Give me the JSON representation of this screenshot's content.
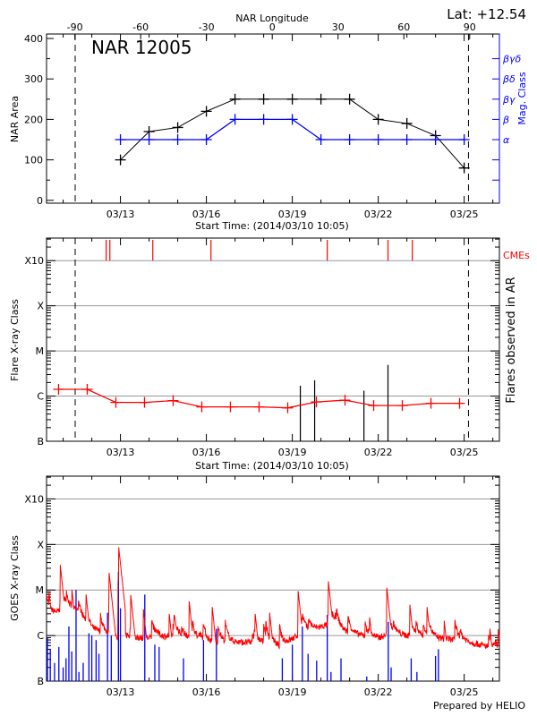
{
  "footer": "Prepared by HELIO",
  "colors": {
    "black": "#000000",
    "blue": "#0000ff",
    "red": "#ff0000",
    "grid": "#999999"
  },
  "chart_data": [
    {
      "id": "nar",
      "type": "line",
      "title": "NAR 12005",
      "lat_label": "Lat: +12.54",
      "top_xlabel": "NAR Longitude",
      "xlabel": "Start Time: (2014/03/10 10:05)",
      "ylabel": "NAR Area",
      "y2label": "Mag. Class",
      "xlim_days": [
        10.42,
        26.23
      ],
      "x_ticks": [
        {
          "day": 13,
          "label": "03/13"
        },
        {
          "day": 16,
          "label": "03/16"
        },
        {
          "day": 19,
          "label": "03/19"
        },
        {
          "day": 22,
          "label": "03/22"
        },
        {
          "day": 25,
          "label": "03/25"
        }
      ],
      "lon_ticks": [
        -90,
        -60,
        -30,
        0,
        30,
        60,
        90
      ],
      "lon_zero_day": 18.3,
      "deg_per_day": 13.06,
      "limb_days": [
        11.42,
        25.15
      ],
      "ylim": [
        -7,
        411
      ],
      "yticks": [
        0,
        100,
        200,
        300,
        400
      ],
      "mag_class_levels": [
        {
          "label": "α",
          "y": 150
        },
        {
          "label": "β",
          "y": 200
        },
        {
          "label": "βγ",
          "y": 250
        },
        {
          "label": "βδ",
          "y": 300
        },
        {
          "label": "βγδ",
          "y": 350
        }
      ],
      "mag_extra_ticks": [
        50,
        100
      ],
      "days": [
        13,
        14,
        15,
        16,
        17,
        18,
        19,
        20,
        21,
        22,
        23,
        24,
        25
      ],
      "series": [
        {
          "name": "NAR Area",
          "color": "#000000",
          "values": [
            100,
            170,
            180,
            220,
            250,
            250,
            250,
            250,
            250,
            200,
            190,
            160,
            80
          ]
        },
        {
          "name": "Mag. Class",
          "color": "#0000ff",
          "values": [
            "α",
            "α",
            "α",
            "α",
            "β",
            "β",
            "β",
            "α",
            "α",
            "α",
            "α",
            "α",
            "α"
          ]
        }
      ]
    },
    {
      "id": "flares",
      "type": "line",
      "xlabel": "Start Time: (2014/03/10 10:05)",
      "ylabel": "Flare X-ray Class",
      "y2label": "Flares observed in AR",
      "cme_label": "CMEs",
      "scale": "log10 flux (W/m^2)",
      "ylim": [
        -7,
        -2.5
      ],
      "levels": [
        {
          "label": "B",
          "log": -7
        },
        {
          "label": "C",
          "log": -6
        },
        {
          "label": "M",
          "log": -5
        },
        {
          "label": "X",
          "log": -4
        },
        {
          "label": "X10",
          "log": -3
        }
      ],
      "daily_max_days": [
        10.84,
        11.84,
        12.84,
        13.84,
        14.84,
        15.84,
        16.84,
        17.84,
        18.84,
        19.84,
        20.84,
        21.84,
        22.84,
        23.84,
        24.84
      ],
      "daily_max_log": [
        -5.85,
        -5.85,
        -6.14,
        -6.14,
        -6.1,
        -6.24,
        -6.24,
        -6.24,
        -6.26,
        -6.13,
        -6.09,
        -6.21,
        -6.21,
        -6.16,
        -6.16
      ],
      "ar_flares": [
        {
          "day": 19.28,
          "log": -5.77
        },
        {
          "day": 19.78,
          "log": -5.65
        },
        {
          "day": 21.5,
          "log": -5.88
        },
        {
          "day": 22.34,
          "log": -5.31
        }
      ],
      "cme_days": [
        12.5,
        12.63,
        14.13,
        16.16,
        20.22,
        22.34,
        23.19
      ],
      "x_ticks": [
        {
          "day": 13,
          "label": "03/13"
        },
        {
          "day": 16,
          "label": "03/16"
        },
        {
          "day": 19,
          "label": "03/19"
        },
        {
          "day": 22,
          "label": "03/22"
        },
        {
          "day": 25,
          "label": "03/25"
        }
      ],
      "limb_days": [
        11.42,
        25.15
      ]
    },
    {
      "id": "goes",
      "type": "line",
      "ylabel": "GOES X-ray Class",
      "ylim": [
        -7,
        -2.5
      ],
      "levels": [
        {
          "label": "B",
          "log": -7
        },
        {
          "label": "C",
          "log": -6
        },
        {
          "label": "M",
          "log": -5
        },
        {
          "label": "X",
          "log": -4
        },
        {
          "label": "X10",
          "log": -3
        }
      ],
      "x_ticks": [
        {
          "day": 13,
          "label": "03/13"
        },
        {
          "day": 16,
          "label": "03/16"
        },
        {
          "day": 19,
          "label": "03/19"
        },
        {
          "day": 22,
          "label": "03/22"
        },
        {
          "day": 25,
          "label": "03/25"
        }
      ],
      "long_channel": {
        "color": "#ff0000",
        "baseline_days": [
          10.42,
          11.0,
          11.5,
          12.0,
          12.5,
          13.0,
          14.0,
          15.0,
          16.0,
          17.0,
          18.0,
          18.6,
          19.3,
          20.3,
          21.0,
          22.0,
          22.5,
          23.0,
          24.0,
          25.0,
          26.23
        ],
        "baseline_log": [
          -5.55,
          -5.45,
          -5.45,
          -5.85,
          -5.95,
          -6.05,
          -6.05,
          -6.0,
          -6.15,
          -6.15,
          -6.15,
          -6.25,
          -5.95,
          -5.75,
          -5.95,
          -6.05,
          -5.95,
          -6.0,
          -6.05,
          -6.12,
          -6.3
        ],
        "peaks": [
          {
            "day": 10.5,
            "log": -5.0
          },
          {
            "day": 10.9,
            "log": -4.45
          },
          {
            "day": 11.3,
            "log": -4.95
          },
          {
            "day": 11.8,
            "log": -5.1
          },
          {
            "day": 12.6,
            "log": -4.6
          },
          {
            "day": 12.93,
            "log": -4.0
          },
          {
            "day": 13.35,
            "log": -5.05
          },
          {
            "day": 13.8,
            "log": -5.4
          },
          {
            "day": 14.7,
            "log": -5.5
          },
          {
            "day": 15.4,
            "log": -5.25
          },
          {
            "day": 16.2,
            "log": -5.35
          },
          {
            "day": 17.7,
            "log": -5.5
          },
          {
            "day": 18.2,
            "log": -5.45
          },
          {
            "day": 19.2,
            "log": -5.0
          },
          {
            "day": 20.25,
            "log": -4.75
          },
          {
            "day": 20.5,
            "log": -5.5
          },
          {
            "day": 21.7,
            "log": -5.6
          },
          {
            "day": 22.3,
            "log": -4.95
          },
          {
            "day": 23.1,
            "log": -5.3
          },
          {
            "day": 23.7,
            "log": -5.35
          },
          {
            "day": 24.3,
            "log": -5.65
          },
          {
            "day": 25.9,
            "log": -5.85
          }
        ]
      },
      "short_channel": {
        "color": "#0000ff",
        "spikes": [
          {
            "day": 10.45,
            "log": -6.05
          },
          {
            "day": 10.55,
            "log": -6.3
          },
          {
            "day": 10.7,
            "log": -6.6
          },
          {
            "day": 10.85,
            "log": -6.25
          },
          {
            "day": 11.0,
            "log": -6.7
          },
          {
            "day": 11.1,
            "log": -6.5
          },
          {
            "day": 11.2,
            "log": -5.8
          },
          {
            "day": 11.3,
            "log": -6.35
          },
          {
            "day": 11.45,
            "log": -5.0
          },
          {
            "day": 11.55,
            "log": -6.8
          },
          {
            "day": 11.7,
            "log": -6.6
          },
          {
            "day": 11.9,
            "log": -5.95
          },
          {
            "day": 12.0,
            "log": -6.0
          },
          {
            "day": 12.15,
            "log": -6.1
          },
          {
            "day": 12.25,
            "log": -6.4
          },
          {
            "day": 12.55,
            "log": -5.5
          },
          {
            "day": 12.68,
            "log": -6.0
          },
          {
            "day": 12.93,
            "log": -4.6
          },
          {
            "day": 13.0,
            "log": -5.4
          },
          {
            "day": 13.85,
            "log": -5.1
          },
          {
            "day": 14.2,
            "log": -6.2
          },
          {
            "day": 14.35,
            "log": -6.25
          },
          {
            "day": 15.2,
            "log": -6.5
          },
          {
            "day": 15.9,
            "log": -6.1
          },
          {
            "day": 16.35,
            "log": -5.85
          },
          {
            "day": 18.65,
            "log": -6.5
          },
          {
            "day": 19.0,
            "log": -6.2
          },
          {
            "day": 19.35,
            "log": -5.8
          },
          {
            "day": 19.55,
            "log": -6.4
          },
          {
            "day": 19.85,
            "log": -6.55
          },
          {
            "day": 20.22,
            "log": -5.55
          },
          {
            "day": 20.35,
            "log": -6.8
          },
          {
            "day": 20.7,
            "log": -6.5
          },
          {
            "day": 21.6,
            "log": -6.9
          },
          {
            "day": 22.35,
            "log": -5.7
          },
          {
            "day": 22.45,
            "log": -6.7
          },
          {
            "day": 23.15,
            "log": -6.5
          },
          {
            "day": 23.35,
            "log": -6.8
          },
          {
            "day": 24.0,
            "log": -6.45
          },
          {
            "day": 24.1,
            "log": -6.3
          }
        ]
      }
    }
  ]
}
